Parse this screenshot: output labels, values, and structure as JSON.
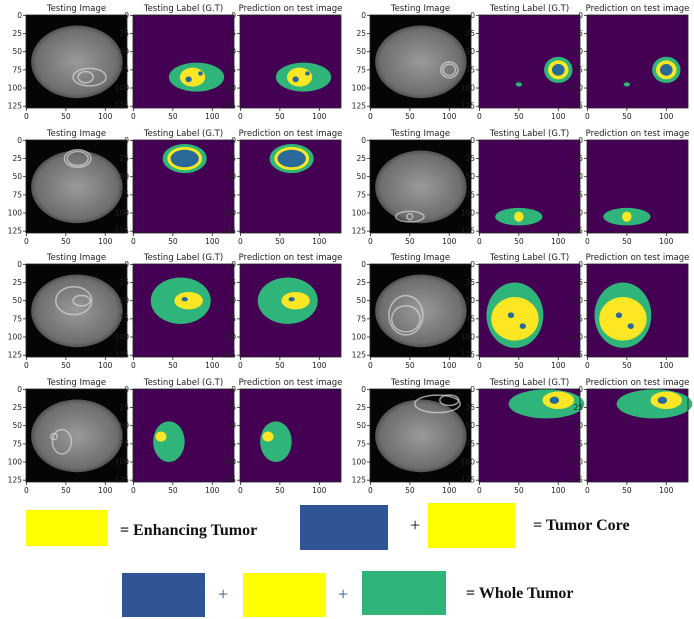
{
  "panels": [
    {
      "title": "Testing Image"
    },
    {
      "title": "Testing Label (G.T)"
    },
    {
      "title": "Prediction on test image"
    },
    {
      "title": "Testing Image"
    },
    {
      "title": "Testing Label (G.T)"
    },
    {
      "title": "Prediction on test image"
    },
    {
      "title": "Testing Image"
    },
    {
      "title": "Testing Label (G.T)"
    },
    {
      "title": "Prediction on test image"
    },
    {
      "title": "Testing Image"
    },
    {
      "title": "Testing Label (G.T)"
    },
    {
      "title": "Prediction on test image"
    },
    {
      "title": "Testing Image"
    },
    {
      "title": "Testing Label (G.T)"
    },
    {
      "title": "Prediction on test image"
    },
    {
      "title": "Testing Image"
    },
    {
      "title": "Testing Label (G.T)"
    },
    {
      "title": "Prediction on test image"
    },
    {
      "title": "Testing Image"
    },
    {
      "title": "Testing Label (G.T)"
    },
    {
      "title": "Prediction on test image"
    },
    {
      "title": "Testing Image"
    },
    {
      "title": "Testing Label (G.T)"
    },
    {
      "title": "Prediction on test image"
    }
  ],
  "axes": {
    "xticks": [
      0,
      50,
      100
    ],
    "yticks": [
      0,
      25,
      50,
      75,
      100,
      125
    ],
    "xlim": [
      -0.5,
      127.5
    ],
    "ylim": [
      -0.5,
      127.5
    ]
  },
  "legend": {
    "enhancing": "= Enhancing Tumor",
    "plus1": "+",
    "core": "= Tumor Core",
    "plus2": "+",
    "plus3": "+",
    "whole": "= Whole Tumor"
  }
}
